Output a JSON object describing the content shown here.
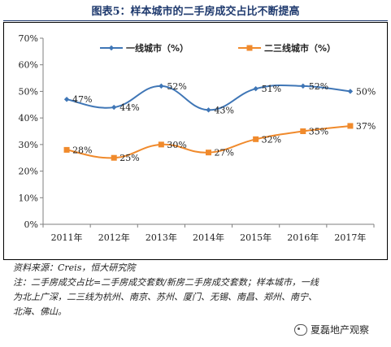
{
  "header": {
    "title": "图表5：样本城市的二手房成交占比不断提高"
  },
  "footer": {
    "source": "资料来源：Creis，恒大研究院",
    "note_line1": "注：二手房成交占比=二手房成交套数/新房二手房成交套数；样本城市，一线",
    "note_line2": "为北上广深，二三线为杭州、南京、苏州、厦门、无锡、南昌、郑州、南宁、",
    "note_line3": "北海、佛山。"
  },
  "watermark": {
    "text": "夏磊地产观察",
    "icon": "wechat-icon"
  },
  "chart_data": {
    "type": "line",
    "title": "",
    "xlabel": "",
    "ylabel": "",
    "categories": [
      "2011年",
      "2012年",
      "2013年",
      "2014年",
      "2015年",
      "2016年",
      "2017年"
    ],
    "ylim": [
      0,
      70
    ],
    "yticks": [
      0,
      10,
      20,
      30,
      40,
      50,
      60,
      70
    ],
    "ytick_labels": [
      "0%",
      "10%",
      "20%",
      "30%",
      "40%",
      "50%",
      "60%",
      "70%"
    ],
    "grid": false,
    "legend_position": "top",
    "series": [
      {
        "name": "一线城市（%）",
        "color": "#3f76b6",
        "marker": "diamond",
        "values": [
          47,
          44,
          52,
          43,
          51,
          52,
          50
        ],
        "labels": [
          "47%",
          "44%",
          "52%",
          "43%",
          "51%",
          "52%",
          "50%"
        ]
      },
      {
        "name": "二三线城市（%）",
        "color": "#f08a2c",
        "marker": "square",
        "values": [
          28,
          25,
          30,
          27,
          32,
          35,
          37
        ],
        "labels": [
          "28%",
          "25%",
          "30%",
          "27%",
          "32%",
          "35%",
          "37%"
        ]
      }
    ]
  }
}
